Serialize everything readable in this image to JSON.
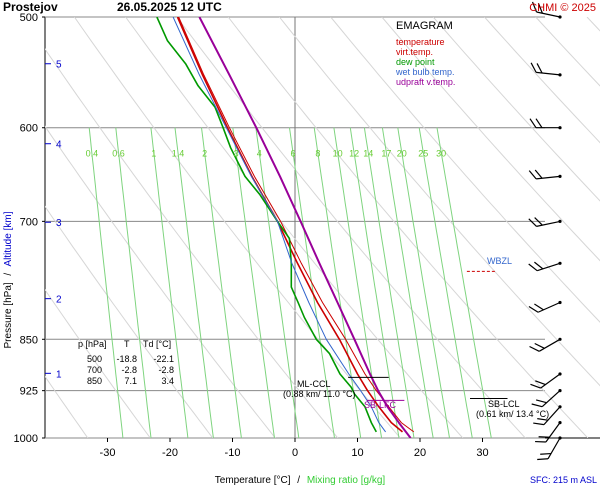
{
  "header": {
    "station": "Prostejov",
    "datetime": "26.05.2025 12 UTC",
    "copyright": "CHMI © 2025"
  },
  "axis_labels": {
    "y_left_pressure": "Pressure [hPa]",
    "y_left_sep": "/",
    "y_left_altitude": "Altitude [km]",
    "x_temp": "Temperature [°C]",
    "x_sep": "/",
    "x_mixing": "Mixing ratio [g/kg]"
  },
  "legend": {
    "title": "EMAGRAM",
    "items": [
      {
        "label": "temperature",
        "color": "#cc0000"
      },
      {
        "label": "virt.temp.",
        "color": "#cc0000"
      },
      {
        "label": "dew point",
        "color": "#009900"
      },
      {
        "label": "wet bulb temp.",
        "color": "#3366cc"
      },
      {
        "label": "udpraft v.temp.",
        "color": "#990099"
      }
    ]
  },
  "table": {
    "header": [
      "p [hPa]",
      "T",
      "Td [°C]"
    ],
    "rows": [
      [
        "500",
        "-18.8",
        "-22.1"
      ],
      [
        "700",
        "-2.8",
        "-2.8"
      ],
      [
        "850",
        "7.1",
        "3.4"
      ]
    ]
  },
  "annotations": {
    "ml_ccl": "ML-CCL",
    "ml_ccl_val": "(0.88 km/ 11.0 °C)",
    "sb_lfc": "SB-LFC",
    "sb_lcl": "SB-LCL",
    "sb_lcl_val": "(0.61 km/ 13.4 °C)",
    "wbzl": "WBZL",
    "sfc": "SFC: 215 m ASL"
  },
  "chart_data": {
    "type": "line",
    "pressure_ticks": [
      500,
      600,
      700,
      850,
      925,
      1000
    ],
    "temperature_ticks": [
      -30,
      -20,
      -10,
      0,
      10,
      20,
      30
    ],
    "altitude_ticks_km": [
      1,
      2,
      3,
      4,
      5
    ],
    "mixing_ratio_ticks": [
      0.4,
      0.6,
      1,
      1.4,
      2,
      3,
      4,
      6,
      8,
      10,
      12,
      14,
      17,
      20,
      25,
      30
    ],
    "mixing_ratio_labels": [
      "0.4",
      "0.6",
      "1",
      "1.4",
      "2",
      "3",
      "4",
      "6",
      "8",
      "10",
      "12",
      "14",
      "17",
      "20",
      "25",
      "30"
    ],
    "xlim": [
      -40,
      40
    ],
    "ylim_hpa": [
      500,
      1000
    ],
    "y_scale": "log",
    "series": [
      {
        "name": "temperature",
        "color": "#cc0000",
        "p": [
          990,
          975,
          950,
          925,
          900,
          850,
          800,
          750,
          700,
          650,
          600,
          550,
          500
        ],
        "t": [
          17.2,
          15.4,
          13.4,
          11.6,
          10.0,
          7.1,
          3.6,
          0.4,
          -2.8,
          -6.9,
          -10.8,
          -14.8,
          -18.8
        ]
      },
      {
        "name": "virt.temp.",
        "color": "#cc0000",
        "p": [
          990,
          975,
          950,
          925,
          900,
          850,
          800,
          750,
          700,
          650,
          600,
          550,
          500
        ],
        "t": [
          19.0,
          17.0,
          15.0,
          13.0,
          11.2,
          8.1,
          4.4,
          1.0,
          -2.3,
          -6.5,
          -10.5,
          -14.6,
          -18.6
        ]
      },
      {
        "name": "dew point",
        "color": "#009900",
        "p": [
          990,
          975,
          950,
          930,
          920,
          900,
          870,
          850,
          820,
          800,
          780,
          750,
          720,
          700,
          670,
          650,
          620,
          600,
          580,
          560,
          540,
          520,
          500
        ],
        "t": [
          13.0,
          12.2,
          11.2,
          9.5,
          9.0,
          7.2,
          5.5,
          3.4,
          1.5,
          0.5,
          -0.6,
          -0.6,
          -0.9,
          -2.8,
          -5.6,
          -8.0,
          -10.3,
          -11.5,
          -12.8,
          -15.5,
          -17.5,
          -20.4,
          -22.1
        ]
      },
      {
        "name": "wet bulb temp.",
        "color": "#3366cc",
        "p": [
          990,
          975,
          950,
          925,
          900,
          850,
          800,
          750,
          700,
          650,
          600,
          550,
          500
        ],
        "t": [
          14.5,
          13.4,
          12.2,
          10.5,
          8.6,
          5.0,
          2.2,
          -0.5,
          -2.8,
          -7.0,
          -11.0,
          -15.3,
          -19.5
        ]
      },
      {
        "name": "udpraft v.temp.",
        "color": "#990099",
        "p": [
          1000,
          975,
          950,
          925,
          900,
          850,
          800,
          750,
          700,
          650,
          600,
          550,
          500
        ],
        "t": [
          18.5,
          16.6,
          14.8,
          13.3,
          12.0,
          9.5,
          6.8,
          3.9,
          0.9,
          -2.4,
          -6.2,
          -10.5,
          -15.3
        ]
      }
    ],
    "wind_barbs_hpa": [
      1000,
      975,
      950,
      925,
      900,
      850,
      800,
      750,
      700,
      650,
      600,
      550,
      500
    ],
    "grid": true
  }
}
